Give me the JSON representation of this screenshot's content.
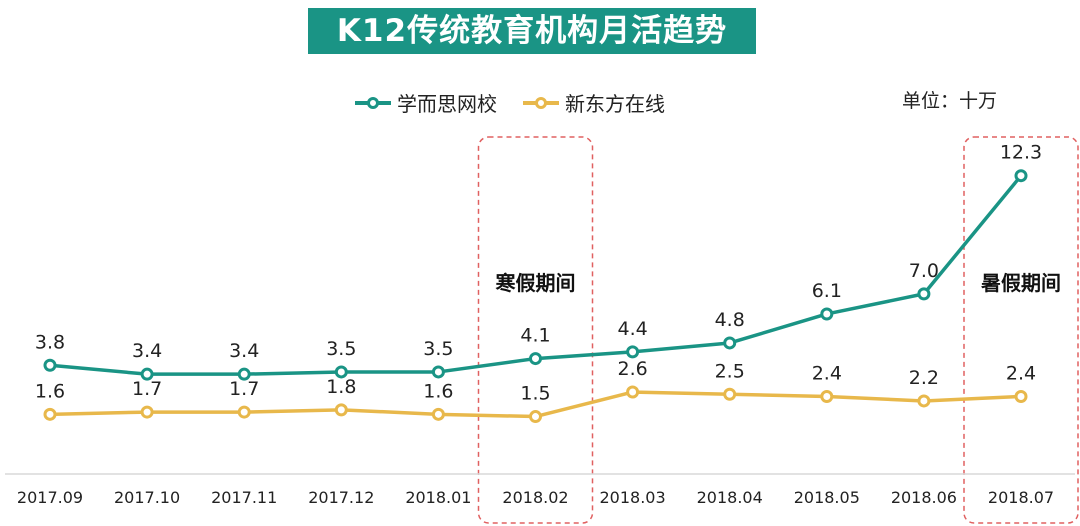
{
  "title": "K12传统教育机构月活趋势",
  "unit": "单位：十万",
  "colors": {
    "teal": "#1a9485",
    "gold": "#e8b84b",
    "dash": "#e06060"
  },
  "chart_data": {
    "type": "line",
    "title": "K12传统教育机构月活趋势",
    "categories": [
      "2017.09",
      "2017.10",
      "2017.11",
      "2017.12",
      "2018.01",
      "2018.02",
      "2018.03",
      "2018.04",
      "2018.05",
      "2018.06",
      "2018.07"
    ],
    "series": [
      {
        "name": "学而思网校",
        "values": [
          3.8,
          3.4,
          3.4,
          3.5,
          3.5,
          4.1,
          4.4,
          4.8,
          6.1,
          7.0,
          12.3
        ],
        "labels": [
          "3.8",
          "3.4",
          "3.4",
          "3.5",
          "3.5",
          "4.1",
          "4.4",
          "4.8",
          "6.1",
          "7.0",
          "12.3"
        ]
      },
      {
        "name": "新东方在线",
        "values": [
          1.6,
          1.7,
          1.7,
          1.8,
          1.6,
          1.5,
          2.6,
          2.5,
          2.4,
          2.2,
          2.4
        ],
        "labels": [
          "1.6",
          "1.7",
          "1.7",
          "1.8",
          "1.6",
          "1.5",
          "2.6",
          "2.5",
          "2.4",
          "2.2",
          "2.4"
        ]
      }
    ],
    "ylim": [
      0,
      13
    ],
    "legend_position": "top",
    "annotations": [
      {
        "text": "寒假期间",
        "category": "2018.02"
      },
      {
        "text": "暑假期间",
        "category": "2018.07"
      }
    ]
  }
}
